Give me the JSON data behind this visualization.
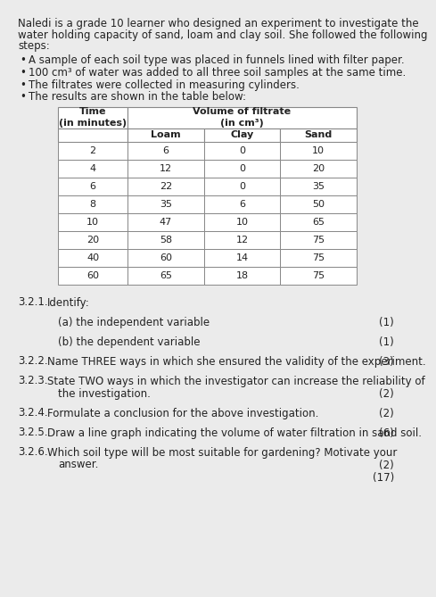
{
  "title_line1": "Naledi is a grade 10 learner who designed an experiment to investigate the",
  "title_line2": "water holding capacity of sand, loam and clay soil. She followed the following",
  "title_line3": "steps:",
  "bullets": [
    "A sample of each soil type was placed in funnels lined with filter paper.",
    "100 cm³ of water was added to all three soil samples at the same time.",
    "The filtrates were collected in measuring cylinders.",
    "The results are shown in the table below:"
  ],
  "table_data": [
    [
      2,
      6,
      0,
      10
    ],
    [
      4,
      12,
      0,
      20
    ],
    [
      6,
      22,
      0,
      35
    ],
    [
      8,
      35,
      6,
      50
    ],
    [
      10,
      47,
      10,
      65
    ],
    [
      20,
      58,
      12,
      75
    ],
    [
      40,
      60,
      14,
      75
    ],
    [
      60,
      65,
      18,
      75
    ]
  ],
  "questions": [
    {
      "num": "3.2.1.",
      "text": "Identify:",
      "marks": "",
      "wrap2": false
    },
    {
      "num": "",
      "text": "(a) the independent variable",
      "marks": "(1)",
      "wrap2": false,
      "sub": true
    },
    {
      "num": "",
      "text": "(b) the dependent variable",
      "marks": "(1)",
      "wrap2": false,
      "sub": true
    },
    {
      "num": "3.2.2.",
      "text": "Name THREE ways in which she ensured the validity of the experiment.",
      "marks": "(3)",
      "wrap2": false
    },
    {
      "num": "3.2.3.",
      "text": "State TWO ways in which the investigator can increase the reliability of",
      "text2": "the investigation.",
      "marks": "(2)",
      "wrap2": true
    },
    {
      "num": "3.2.4.",
      "text": "Formulate a conclusion for the above investigation.",
      "marks": "(2)",
      "wrap2": false
    },
    {
      "num": "3.2.5.",
      "text": "Draw a line graph indicating the volume of water filtration in sand soil.",
      "marks": "(6)",
      "wrap2": false
    },
    {
      "num": "3.2.6.",
      "text": "Which soil type will be most suitable for gardening? Motivate your",
      "text2": "answer.",
      "marks2": "(2)",
      "marks3": "(17)",
      "wrap2": true
    }
  ],
  "bg_color": "#ebebeb",
  "text_color": "#222222",
  "table_line_color": "#888888",
  "fs_title": 8.5,
  "fs_table": 8.0,
  "fs_q": 8.5
}
